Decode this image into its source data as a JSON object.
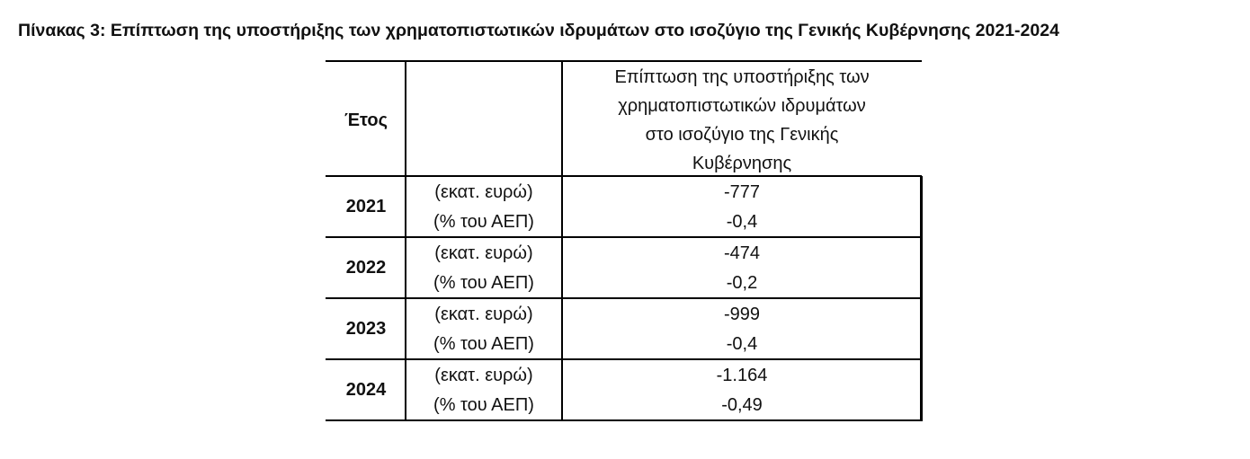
{
  "title": "Πίνακας 3: Επίπτωση της υποστήριξης των χρηματοπιστωτικών ιδρυμάτων στο ισοζύγιο της Γενικής Κυβέρνησης 2021-2024",
  "table": {
    "header": {
      "year": "Έτος",
      "value_lines": [
        "Επίπτωση της υποστήριξης των",
        "χρηματοπιστωτικών ιδρυμάτων",
        "στο ισοζύγιο της  Γενικής",
        "Κυβέρνησης"
      ]
    },
    "rows": [
      {
        "year": "2021",
        "units": [
          "(εκατ. ευρώ)",
          "(% του ΑΕΠ)"
        ],
        "values": [
          "-777",
          "-0,4"
        ]
      },
      {
        "year": "2022",
        "units": [
          "(εκατ. ευρώ)",
          "(% του ΑΕΠ)"
        ],
        "values": [
          "-474",
          "-0,2"
        ]
      },
      {
        "year": "2023",
        "units": [
          "(εκατ. ευρώ)",
          "(% του ΑΕΠ)"
        ],
        "values": [
          "-999",
          "-0,4"
        ]
      },
      {
        "year": "2024",
        "units": [
          "(εκατ. ευρώ)",
          "(% του ΑΕΠ)"
        ],
        "values": [
          "-1.164",
          "-0,49"
        ]
      }
    ]
  }
}
